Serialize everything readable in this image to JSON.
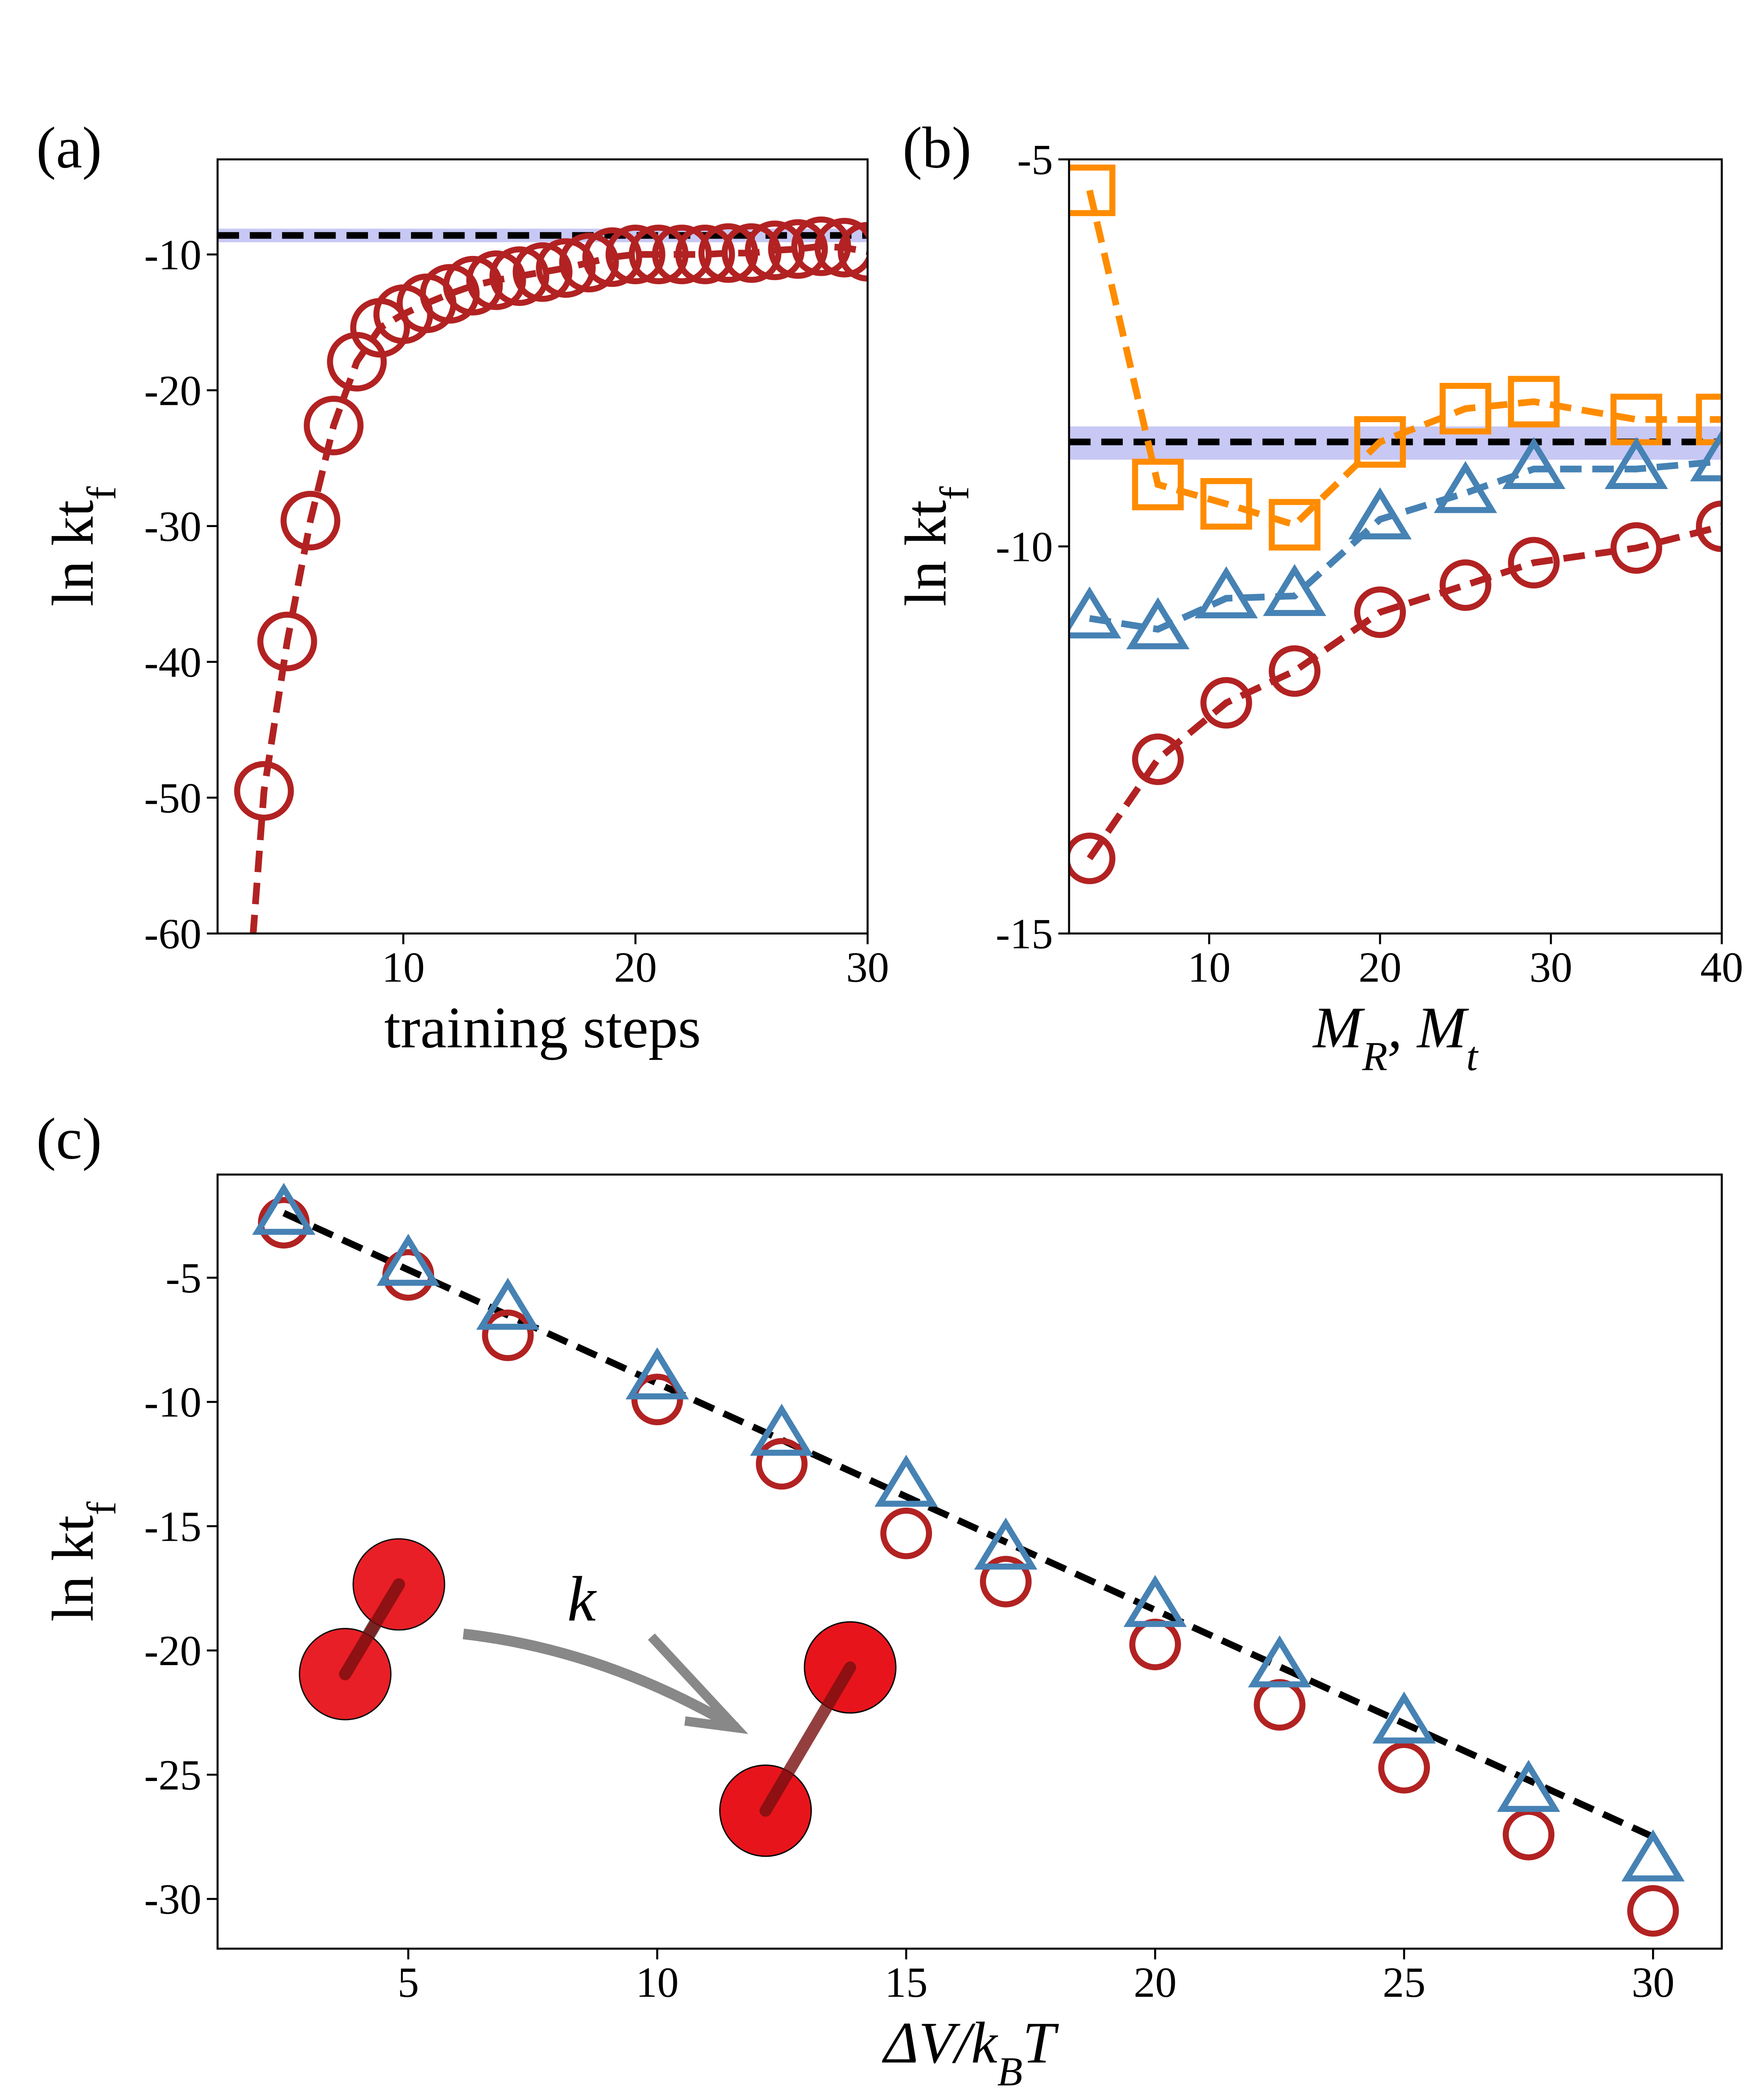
{
  "chart_data": [
    {
      "type": "line",
      "panel_label": "(a)",
      "xlabel": [
        "training steps"
      ],
      "ylabel": [
        "ln kt",
        "f"
      ],
      "xlim": [
        2,
        30
      ],
      "ylim": [
        -60,
        -3
      ],
      "xticks": [
        10,
        20,
        30
      ],
      "yticks": [
        -60,
        -50,
        -40,
        -30,
        -20,
        -10
      ],
      "hline": -8.6,
      "hline_color": "#000000",
      "hband": [
        -9.1,
        -8.1
      ],
      "hband_color": "#c8c8f5",
      "x": [
        3,
        4,
        5,
        6,
        7,
        8,
        9,
        10,
        11,
        12,
        13,
        14,
        15,
        16,
        17,
        18,
        19,
        20,
        21,
        22,
        23,
        24,
        25,
        26,
        27,
        28,
        29,
        30
      ],
      "series": [
        {
          "color": "#b22222",
          "marker": "o",
          "values": [
            -72,
            -49.5,
            -38.5,
            -29.6,
            -22.6,
            -17.9,
            -15.4,
            -14.4,
            -13.6,
            -12.9,
            -12.3,
            -11.9,
            -11.6,
            -11.3,
            -11,
            -10.6,
            -10.2,
            -10,
            -10,
            -10,
            -10,
            -9.9,
            -9.9,
            -9.7,
            -9.6,
            -9.4,
            -9.5,
            -9.8
          ]
        }
      ]
    },
    {
      "type": "line",
      "panel_label": "(b)",
      "xlabel": [
        "M",
        "R",
        ", M",
        "t"
      ],
      "ylabel": [
        "ln kt",
        "f"
      ],
      "xlim": [
        1.8,
        40
      ],
      "ylim": [
        -15,
        -5
      ],
      "xticks": [
        10,
        20,
        30,
        40
      ],
      "yticks": [
        -15,
        -10,
        -5
      ],
      "hline": -8.65,
      "hline_color": "#000000",
      "hband": [
        -8.88,
        -8.45
      ],
      "hband_color": "#c8c8f5",
      "x": [
        3,
        7,
        11,
        15,
        20,
        25,
        29,
        35,
        40
      ],
      "series": [
        {
          "color": "#ff8c00",
          "marker": "s",
          "values": [
            -5.4,
            -9.2,
            -9.45,
            -9.72,
            -8.65,
            -8.22,
            -8.13,
            -8.36,
            -8.36
          ]
        },
        {
          "color": "#4682b4",
          "marker": "^",
          "values": [
            -10.93,
            -11.07,
            -10.67,
            -10.64,
            -9.65,
            -9.31,
            -9.0,
            -9.0,
            -8.9
          ]
        },
        {
          "color": "#b22222",
          "marker": "o",
          "values": [
            -14.03,
            -12.75,
            -12.02,
            -11.61,
            -10.85,
            -10.5,
            -10.21,
            -10.02,
            -9.74
          ]
        }
      ]
    },
    {
      "type": "scatter",
      "panel_label": "(c)",
      "xlabel": [
        "ΔV/k",
        "B",
        "T"
      ],
      "ylabel": [
        "ln kt",
        "f"
      ],
      "xlim": [
        1.17,
        31.38
      ],
      "ylim": [
        -32,
        -0.85
      ],
      "xticks": [
        5,
        10,
        15,
        20,
        25,
        30
      ],
      "yticks": [
        -30,
        -25,
        -20,
        -15,
        -10,
        -5
      ],
      "fit_line": {
        "x": [
          2.5,
          30
        ],
        "y": [
          -2.4,
          -27.5
        ],
        "color": "#000000"
      },
      "annotation": "k",
      "x": [
        2.5,
        5,
        7,
        10,
        12.5,
        15,
        17,
        20,
        22.5,
        25,
        27.5,
        30
      ],
      "series": [
        {
          "color": "#b22222",
          "marker": "o",
          "values": [
            -2.79,
            -4.89,
            -7.32,
            -9.9,
            -12.49,
            -15.29,
            -17.23,
            -19.76,
            -22.19,
            -24.72,
            -27.41,
            -30.48
          ]
        },
        {
          "color": "#4682b4",
          "marker": "^",
          "values": [
            -2.47,
            -4.52,
            -6.29,
            -9.09,
            -11.36,
            -13.41,
            -15.94,
            -18.25,
            -20.68,
            -22.94,
            -25.69,
            -28.49
          ]
        }
      ]
    }
  ]
}
